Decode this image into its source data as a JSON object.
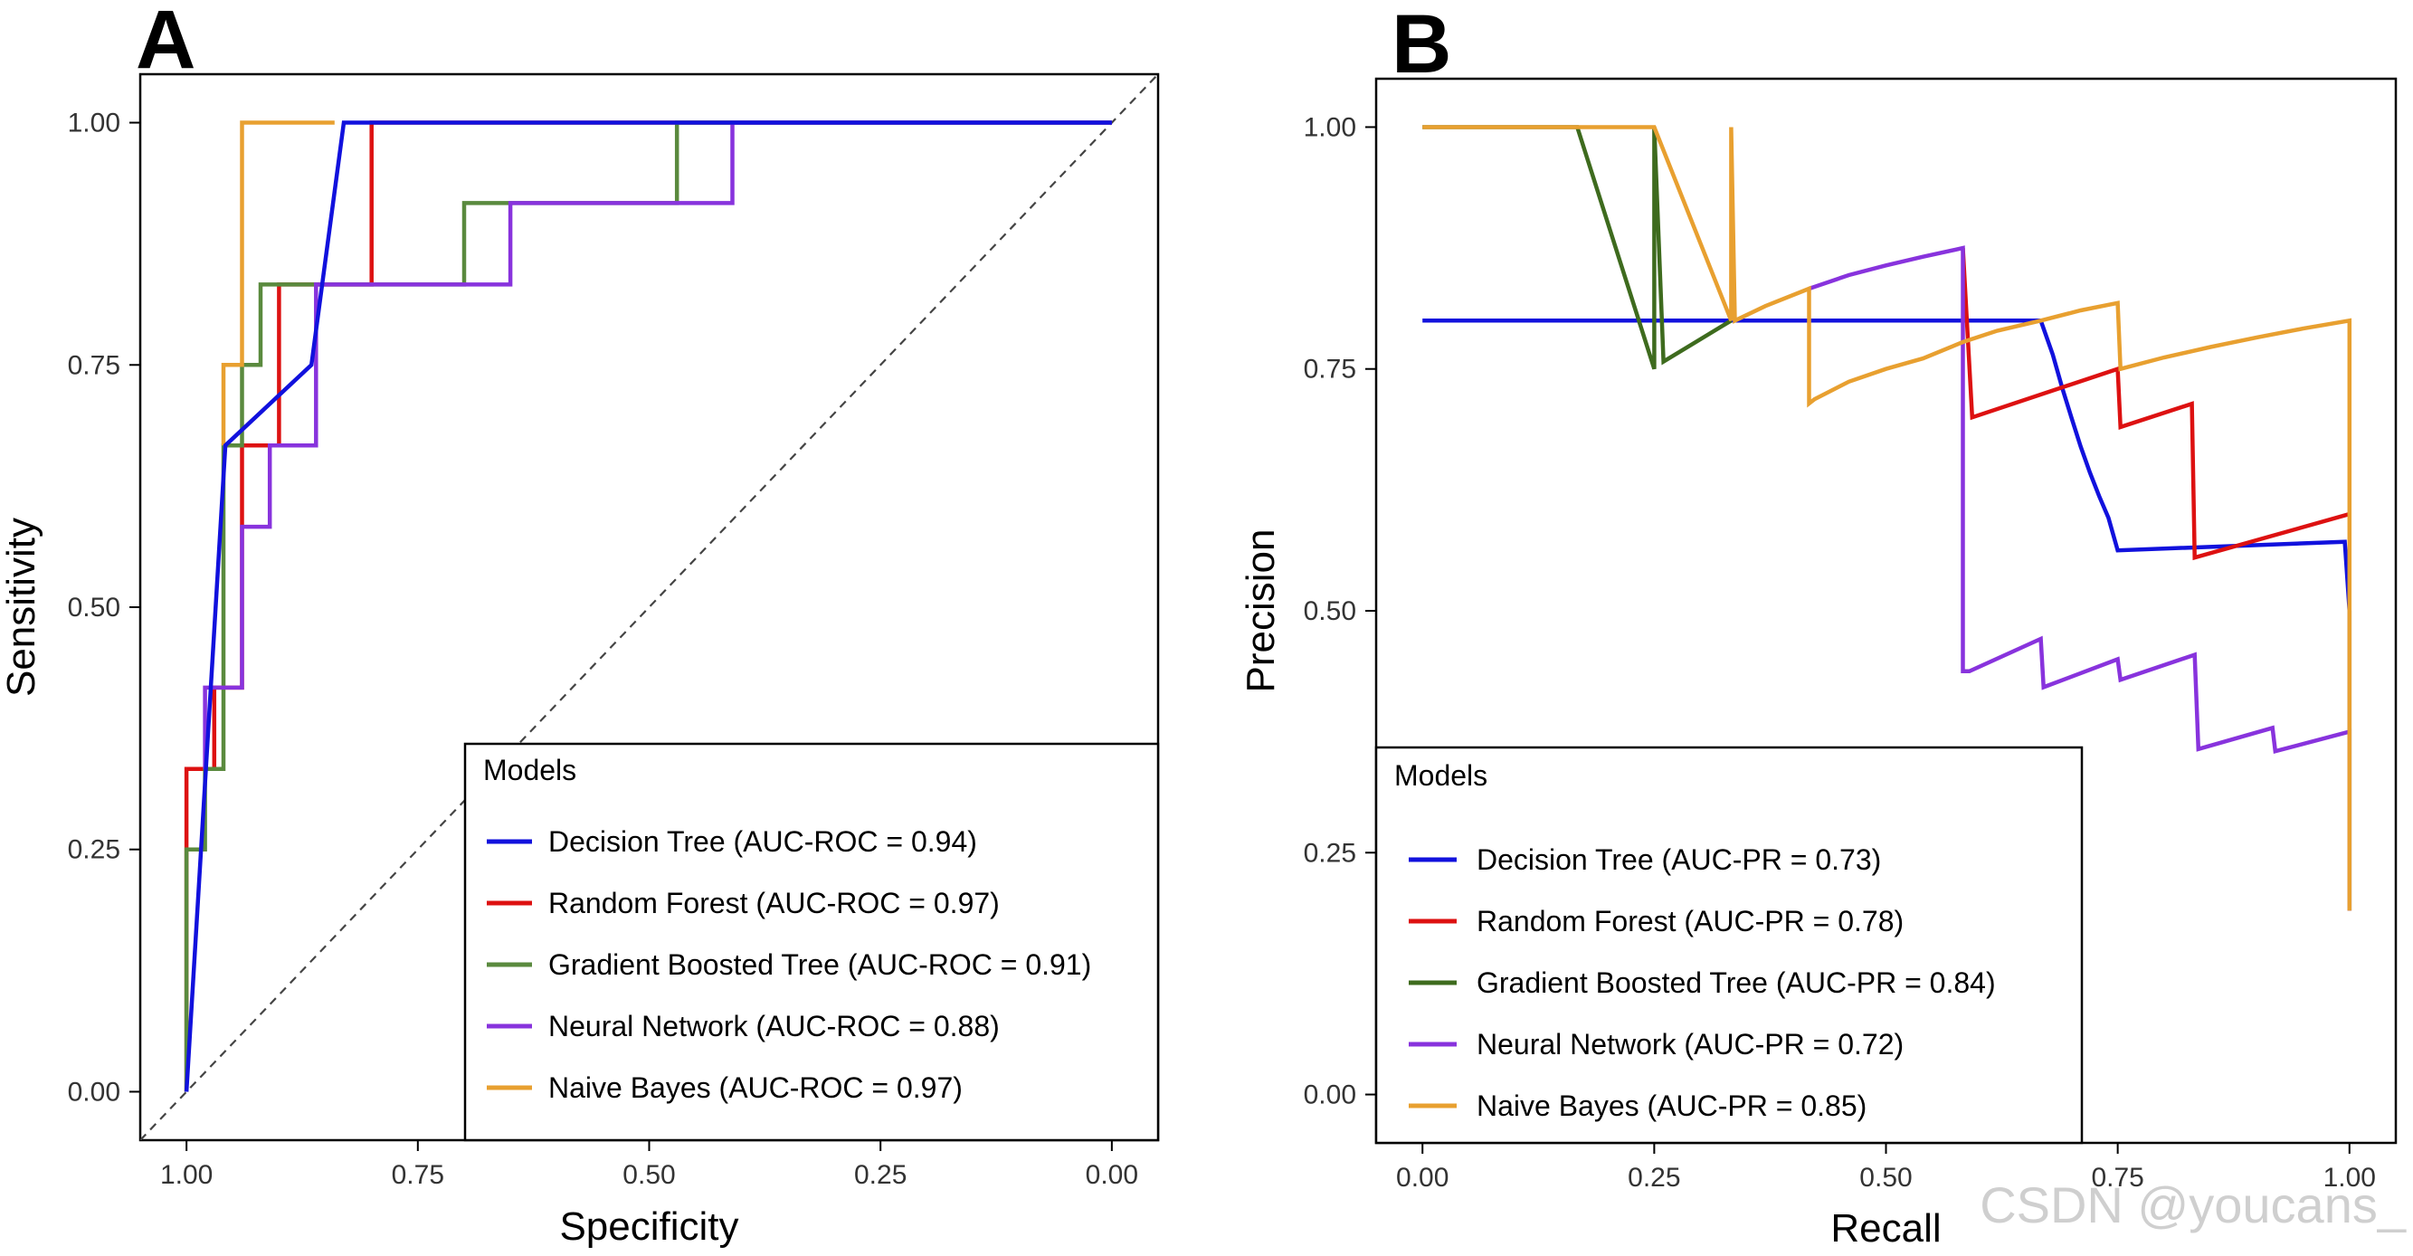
{
  "watermark": "CSDN @youcans_",
  "chart_data": [
    {
      "type": "line",
      "panel_label": "A",
      "xlabel": "Specificity",
      "ylabel": "Sensitivity",
      "xlim": [
        1.05,
        -0.05
      ],
      "ylim": [
        -0.05,
        1.05
      ],
      "x_ticks": [
        1.0,
        0.75,
        0.5,
        0.25,
        0.0
      ],
      "x_tick_labels": [
        "1.00",
        "0.75",
        "0.50",
        "0.25",
        "0.00"
      ],
      "y_ticks": [
        0.0,
        0.25,
        0.5,
        0.75,
        1.0
      ],
      "y_tick_labels": [
        "0.00",
        "0.25",
        "0.50",
        "0.75",
        "1.00"
      ],
      "diagonal_reference": true,
      "legend_title": "Models",
      "legend_position": "bottom-right",
      "series": [
        {
          "name": "Random Forest (AUC-ROC = 0.97)",
          "color": "#dd1111",
          "x": [
            1.0,
            1.0,
            1.0,
            0.97,
            0.97,
            0.94,
            0.94,
            0.9,
            0.9,
            0.8,
            0.8,
            0.0
          ],
          "y": [
            0.0,
            0.25,
            0.333,
            0.333,
            0.417,
            0.417,
            0.667,
            0.667,
            0.833,
            0.833,
            1.0,
            1.0
          ]
        },
        {
          "name": "Gradient Boosted Tree (AUC-ROC = 0.91)",
          "color": "#5a8a3e",
          "x": [
            1.0,
            1.0,
            0.98,
            0.98,
            0.96,
            0.96,
            0.94,
            0.94,
            0.92,
            0.92,
            0.9,
            0.9,
            0.7,
            0.7,
            0.47,
            0.47,
            0.0
          ],
          "y": [
            0.0,
            0.25,
            0.25,
            0.333,
            0.333,
            0.667,
            0.667,
            0.75,
            0.75,
            0.833,
            0.833,
            0.833,
            0.833,
            0.917,
            0.917,
            1.0,
            1.0
          ]
        },
        {
          "name": "Neural Network (AUC-ROC = 0.88)",
          "color": "#8833dd",
          "x": [
            0.98,
            0.98,
            0.94,
            0.94,
            0.92,
            0.92,
            0.91,
            0.91,
            0.86,
            0.86,
            0.86,
            0.65,
            0.65,
            0.47,
            0.47,
            0.41,
            0.41,
            0.0
          ],
          "y": [
            0.333,
            0.417,
            0.417,
            0.583,
            0.583,
            0.583,
            0.583,
            0.667,
            0.667,
            0.833,
            0.833,
            0.833,
            0.917,
            0.917,
            0.917,
            0.917,
            1.0,
            1.0
          ]
        },
        {
          "name": "Naive Bayes (AUC-ROC = 0.97)",
          "color": "#e8a030",
          "x": [
            0.96,
            0.96,
            0.94,
            0.94,
            0.94,
            0.94,
            0.94,
            0.94,
            0.94,
            0.94,
            0.94,
            0.94,
            0.94,
            0.94,
            0.94,
            0.94,
            0.94,
            0.94,
            0.94,
            0.94,
            0.94,
            0.94,
            0.94,
            0.94,
            0.94,
            0.94,
            0.94,
            0.94,
            0.94,
            0.94,
            0.94,
            0.94,
            0.94,
            0.94,
            0.94,
            0.94,
            0.94,
            0.94,
            0.94,
            0.94,
            0.94,
            0.94,
            0.94,
            0.94,
            0.94,
            0.94,
            0.94,
            0.94,
            0.94,
            0.94
          ],
          "y": [
            0.667,
            0.75,
            0.75,
            1.0,
            1.0,
            1.0,
            1.0,
            1.0,
            1.0,
            1.0,
            1.0,
            1.0,
            1.0,
            1.0,
            1.0,
            1.0,
            1.0,
            1.0,
            1.0,
            1.0,
            1.0,
            1.0,
            1.0,
            1.0,
            1.0,
            1.0,
            1.0,
            1.0,
            1.0,
            1.0,
            1.0,
            1.0,
            1.0,
            1.0,
            1.0,
            1.0,
            1.0,
            1.0,
            1.0,
            1.0,
            1.0,
            1.0,
            1.0,
            1.0,
            1.0,
            1.0,
            1.0,
            1.0,
            1.0,
            1.0
          ],
          "extra_x": [
            0.94,
            0.84
          ],
          "extra_y": [
            1.0,
            1.0
          ]
        },
        {
          "name": "Decision Tree (AUC-ROC = 0.94)",
          "color": "#1111dd",
          "x": [
            1.0,
            0.958,
            0.865,
            0.83,
            0.0
          ],
          "y": [
            0.0,
            0.667,
            0.75,
            1.0,
            1.0
          ]
        }
      ]
    },
    {
      "type": "line",
      "panel_label": "B",
      "xlabel": "Recall",
      "ylabel": "Precision",
      "xlim": [
        -0.05,
        1.05
      ],
      "ylim": [
        -0.05,
        1.05
      ],
      "x_ticks": [
        0.0,
        0.25,
        0.5,
        0.75,
        1.0
      ],
      "x_tick_labels": [
        "0.00",
        "0.25",
        "0.50",
        "0.75",
        "1.00"
      ],
      "y_ticks": [
        0.0,
        0.25,
        0.5,
        0.75,
        1.0
      ],
      "y_tick_labels": [
        "0.00",
        "0.25",
        "0.50",
        "0.75",
        "1.00"
      ],
      "diagonal_reference": false,
      "legend_title": "Models",
      "legend_position": "bottom-left",
      "series": [
        {
          "name": "Decision Tree (AUC-PR = 0.73)",
          "color": "#1111dd",
          "x": [
            0.0,
            0.667,
            0.68,
            0.69,
            0.7,
            0.71,
            0.72,
            0.73,
            0.74,
            0.75,
            0.995,
            1.0,
            1.0
          ],
          "y": [
            0.8,
            0.8,
            0.7647,
            0.7308,
            0.7,
            0.6698,
            0.6429,
            0.6186,
            0.5962,
            0.5625,
            0.5714,
            0.5,
            0.19
          ]
        },
        {
          "name": "Random Forest (AUC-PR = 0.78)",
          "color": "#dd1111",
          "x": [
            0.583,
            0.593,
            0.75,
            0.753,
            0.83,
            0.833,
            1.0
          ],
          "y": [
            0.875,
            0.7,
            0.75,
            0.69,
            0.714,
            0.555,
            0.6
          ]
        },
        {
          "name": "Neural Network (AUC-PR = 0.72)",
          "color": "#8833dd",
          "x": [
            0.417,
            0.46,
            0.5,
            0.54,
            0.583,
            0.583,
            0.59,
            0.667,
            0.67,
            0.75,
            0.753,
            0.833,
            0.837,
            0.917,
            0.92,
            1.0,
            1.0
          ],
          "y": [
            0.833,
            0.847,
            0.857,
            0.866,
            0.875,
            0.4375,
            0.4375,
            0.471,
            0.4211,
            0.45,
            0.4286,
            0.4545,
            0.3571,
            0.379,
            0.3548,
            0.375,
            0.19
          ]
        },
        {
          "name": "Gradient Boosted Tree (AUC-PR = 0.84)",
          "color": "#3e6b1e",
          "x": [
            0.0,
            0.167,
            0.25,
            0.25,
            0.26,
            0.333
          ],
          "y": [
            1.0,
            1.0,
            0.75,
            1.0,
            0.7576,
            0.8
          ]
        },
        {
          "name": "Naive Bayes (AUC-PR = 0.85)",
          "color": "#e8a030",
          "x": [
            0.0,
            0.25,
            0.333,
            0.333,
            0.337,
            0.37,
            0.417,
            0.417,
            0.423,
            0.46,
            0.5,
            0.54,
            0.583,
            0.62,
            0.667,
            0.71,
            0.75,
            0.753,
            0.8,
            0.85,
            0.9,
            0.95,
            1.0,
            1.0
          ],
          "y": [
            1.0,
            1.0,
            0.8,
            1.0,
            0.8,
            0.815,
            0.833,
            0.7143,
            0.7188,
            0.7368,
            0.75,
            0.7609,
            0.7778,
            0.7895,
            0.8,
            0.8105,
            0.8182,
            0.75,
            0.7619,
            0.7727,
            0.7826,
            0.7917,
            0.8,
            0.19
          ]
        }
      ]
    }
  ]
}
